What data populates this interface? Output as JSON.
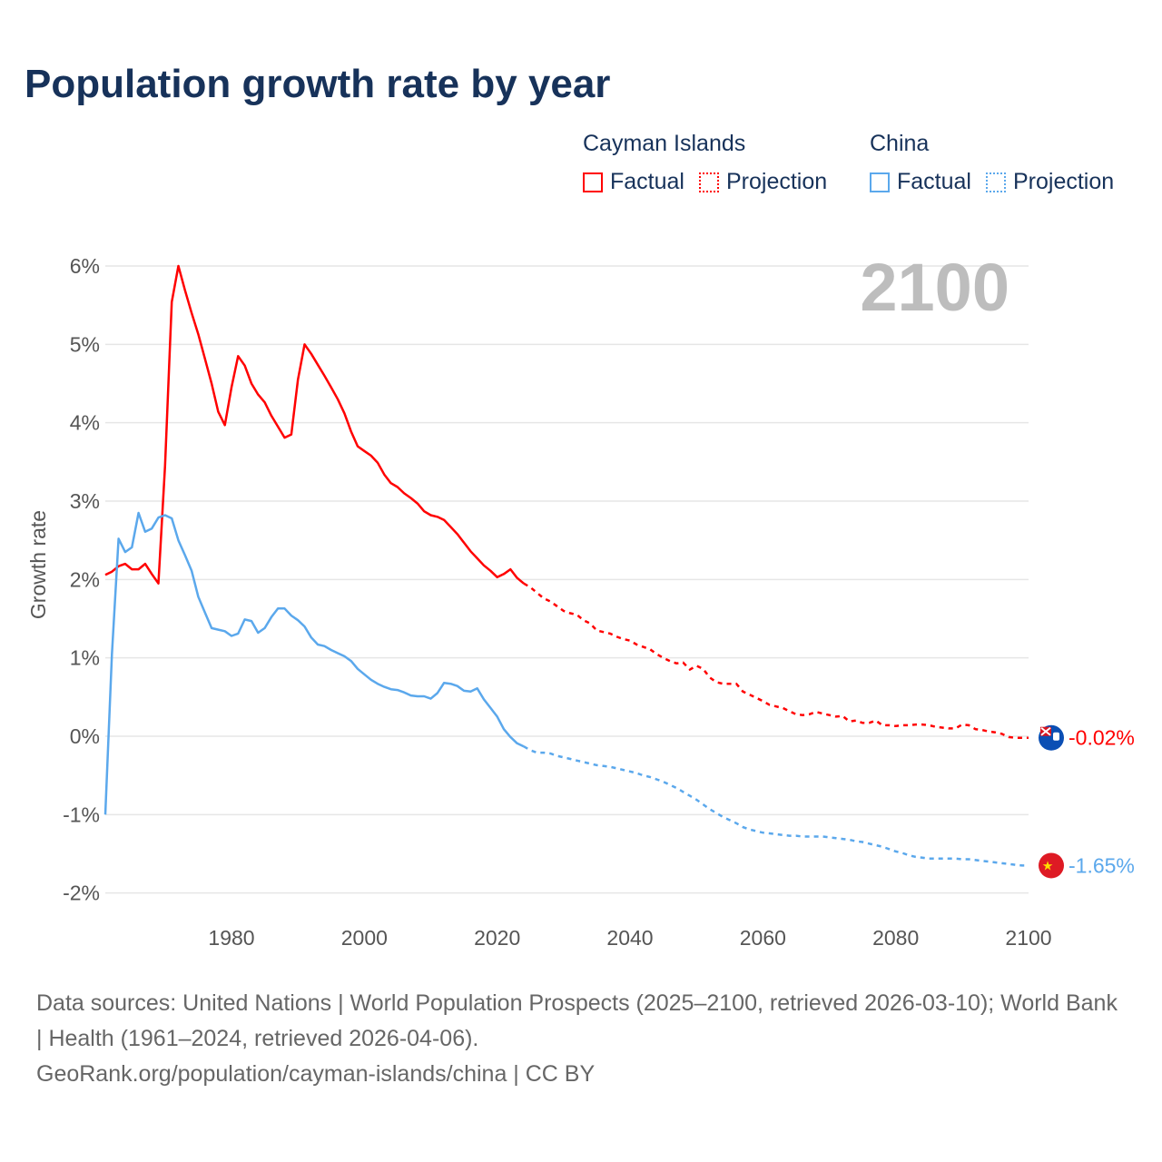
{
  "title": "Population growth rate by year",
  "legend": [
    {
      "name": "Cayman Islands",
      "color": "#ff0000",
      "factual_label": "Factual",
      "projection_label": "Projection"
    },
    {
      "name": "China",
      "color": "#5ba8ec",
      "factual_label": "Factual",
      "projection_label": "Projection"
    }
  ],
  "year_display": "2100",
  "footer": {
    "sources": "Data sources: United Nations | World Population Prospects (2025–2100, retrieved 2026-03-10); World Bank | Health (1961–2024, retrieved 2026-04-06).",
    "attribution": "GeoRank.org/population/cayman-islands/china | CC BY"
  },
  "chart_data": {
    "type": "line",
    "title": "Population growth rate by year",
    "xlabel": "",
    "ylabel": "Growth rate",
    "xlim": [
      1961,
      2100
    ],
    "ylim": [
      -2.3,
      6.2
    ],
    "xticks": [
      1980,
      2000,
      2020,
      2040,
      2060,
      2080,
      2100
    ],
    "xtick_labels": [
      "1980",
      "2000",
      "2020",
      "2040",
      "2060",
      "2080",
      "2100"
    ],
    "yticks": [
      -2,
      -1,
      0,
      1,
      2,
      3,
      4,
      5,
      6
    ],
    "ytick_labels": [
      "-2%",
      "-1%",
      "0%",
      "1%",
      "2%",
      "3%",
      "4%",
      "5%",
      "6%"
    ],
    "grid": true,
    "legend_position": "top-right",
    "series": [
      {
        "name": "Cayman Islands",
        "color": "#ff0000",
        "factual_start": 1961,
        "factual": [
          2.06,
          2.1,
          2.17,
          2.2,
          2.13,
          2.13,
          2.2,
          2.07,
          1.95,
          3.45,
          5.54,
          6.0,
          5.69,
          5.4,
          5.13,
          4.82,
          4.5,
          4.14,
          3.97,
          4.45,
          4.85,
          4.73,
          4.5,
          4.36,
          4.26,
          4.09,
          3.95,
          3.81,
          3.85,
          4.55,
          5.0,
          4.88,
          4.74,
          4.6,
          4.45,
          4.3,
          4.12,
          3.89,
          3.7,
          3.64,
          3.58,
          3.49,
          3.34,
          3.23,
          3.18,
          3.1,
          3.04,
          2.97,
          2.87,
          2.82,
          2.8,
          2.76,
          2.67,
          2.58,
          2.47,
          2.36,
          2.27,
          2.18,
          2.11,
          2.03,
          2.07,
          2.13,
          2.02,
          1.95
        ],
        "projection_start": 2025,
        "projection": [
          1.9,
          1.83,
          1.76,
          1.72,
          1.66,
          1.6,
          1.57,
          1.55,
          1.48,
          1.44,
          1.35,
          1.33,
          1.31,
          1.27,
          1.24,
          1.22,
          1.17,
          1.14,
          1.11,
          1.05,
          1.0,
          0.96,
          0.93,
          0.94,
          0.85,
          0.9,
          0.86,
          0.75,
          0.69,
          0.67,
          0.67,
          0.67,
          0.57,
          0.53,
          0.49,
          0.45,
          0.4,
          0.38,
          0.36,
          0.32,
          0.28,
          0.27,
          0.28,
          0.31,
          0.29,
          0.27,
          0.25,
          0.26,
          0.19,
          0.2,
          0.17,
          0.17,
          0.2,
          0.14,
          0.14,
          0.13,
          0.14,
          0.14,
          0.15,
          0.15,
          0.14,
          0.12,
          0.11,
          0.1,
          0.1,
          0.15,
          0.14,
          0.09,
          0.08,
          0.06,
          0.05,
          0.03,
          -0.01,
          -0.02,
          -0.02,
          -0.02
        ],
        "end_label": "-0.02%"
      },
      {
        "name": "China",
        "color": "#5ba8ec",
        "factual_start": 1961,
        "factual": [
          -1.0,
          1.05,
          2.52,
          2.35,
          2.41,
          2.85,
          2.61,
          2.65,
          2.79,
          2.82,
          2.78,
          2.5,
          2.31,
          2.11,
          1.78,
          1.58,
          1.38,
          1.36,
          1.34,
          1.28,
          1.31,
          1.49,
          1.47,
          1.32,
          1.38,
          1.52,
          1.63,
          1.63,
          1.54,
          1.48,
          1.4,
          1.26,
          1.17,
          1.15,
          1.1,
          1.06,
          1.02,
          0.96,
          0.86,
          0.79,
          0.72,
          0.67,
          0.63,
          0.6,
          0.59,
          0.56,
          0.52,
          0.51,
          0.51,
          0.48,
          0.55,
          0.68,
          0.67,
          0.64,
          0.58,
          0.57,
          0.61,
          0.47,
          0.36,
          0.25,
          0.09,
          -0.01,
          -0.09,
          -0.13
        ],
        "projection_start": 2025,
        "projection": [
          -0.18,
          -0.21,
          -0.21,
          -0.22,
          -0.25,
          -0.27,
          -0.29,
          -0.31,
          -0.33,
          -0.35,
          -0.37,
          -0.38,
          -0.39,
          -0.41,
          -0.43,
          -0.45,
          -0.47,
          -0.5,
          -0.52,
          -0.55,
          -0.58,
          -0.62,
          -0.66,
          -0.71,
          -0.76,
          -0.81,
          -0.87,
          -0.93,
          -0.98,
          -1.03,
          -1.07,
          -1.11,
          -1.16,
          -1.19,
          -1.21,
          -1.23,
          -1.24,
          -1.25,
          -1.26,
          -1.27,
          -1.27,
          -1.28,
          -1.28,
          -1.28,
          -1.28,
          -1.29,
          -1.3,
          -1.31,
          -1.32,
          -1.34,
          -1.35,
          -1.37,
          -1.39,
          -1.41,
          -1.44,
          -1.47,
          -1.49,
          -1.52,
          -1.54,
          -1.55,
          -1.56,
          -1.56,
          -1.56,
          -1.56,
          -1.56,
          -1.57,
          -1.57,
          -1.58,
          -1.59,
          -1.6,
          -1.61,
          -1.62,
          -1.63,
          -1.64,
          -1.65,
          -1.65
        ],
        "end_label": "-1.65%"
      }
    ]
  }
}
